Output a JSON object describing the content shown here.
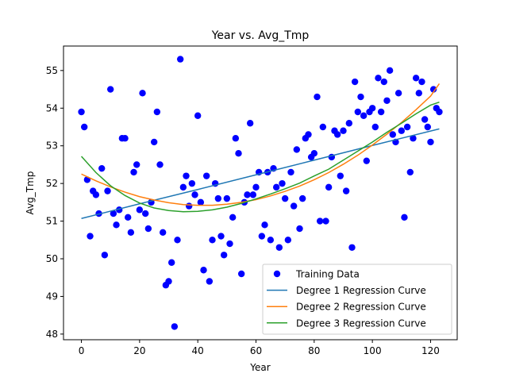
{
  "chart_data": {
    "type": "scatter",
    "title": "Year vs. Avg_Tmp",
    "xlabel": "Year",
    "ylabel": "Avg_Tmp",
    "xlim": [
      -6.15,
      129.15
    ],
    "ylim": [
      47.85,
      55.65
    ],
    "xticks": [
      0,
      20,
      40,
      60,
      80,
      100,
      120
    ],
    "yticks": [
      48,
      49,
      50,
      51,
      52,
      53,
      54,
      55
    ],
    "grid": false,
    "legend_position": "lower right",
    "colors": {
      "scatter": "#0000ff",
      "degree1": "#1f77b4",
      "degree2": "#ff7f0e",
      "degree3": "#2ca02c"
    },
    "scatter": {
      "name": "Training Data",
      "points": [
        [
          0,
          53.9
        ],
        [
          1,
          53.5
        ],
        [
          2,
          52.1
        ],
        [
          3,
          50.6
        ],
        [
          4,
          51.8
        ],
        [
          5,
          51.7
        ],
        [
          6,
          51.2
        ],
        [
          7,
          52.4
        ],
        [
          8,
          50.1
        ],
        [
          9,
          51.8
        ],
        [
          10,
          54.5
        ],
        [
          11,
          51.2
        ],
        [
          12,
          50.9
        ],
        [
          13,
          51.3
        ],
        [
          14,
          53.2
        ],
        [
          15,
          53.2
        ],
        [
          16,
          51.1
        ],
        [
          17,
          50.7
        ],
        [
          18,
          52.3
        ],
        [
          19,
          52.5
        ],
        [
          20,
          51.3
        ],
        [
          21,
          54.4
        ],
        [
          22,
          51.2
        ],
        [
          23,
          50.8
        ],
        [
          24,
          51.5
        ],
        [
          25,
          53.1
        ],
        [
          26,
          53.9
        ],
        [
          27,
          52.5
        ],
        [
          28,
          50.7
        ],
        [
          29,
          49.3
        ],
        [
          30,
          49.4
        ],
        [
          31,
          49.9
        ],
        [
          32,
          48.2
        ],
        [
          33,
          50.5
        ],
        [
          34,
          55.3
        ],
        [
          35,
          51.9
        ],
        [
          36,
          52.2
        ],
        [
          37,
          51.4
        ],
        [
          38,
          52.0
        ],
        [
          39,
          51.7
        ],
        [
          40,
          53.8
        ],
        [
          41,
          51.5
        ],
        [
          42,
          49.7
        ],
        [
          43,
          52.2
        ],
        [
          44,
          49.4
        ],
        [
          45,
          50.5
        ],
        [
          46,
          52.0
        ],
        [
          47,
          51.6
        ],
        [
          48,
          50.6
        ],
        [
          49,
          50.1
        ],
        [
          50,
          51.6
        ],
        [
          51,
          50.4
        ],
        [
          52,
          51.1
        ],
        [
          53,
          53.2
        ],
        [
          54,
          52.8
        ],
        [
          55,
          49.6
        ],
        [
          56,
          51.5
        ],
        [
          57,
          51.7
        ],
        [
          58,
          53.6
        ],
        [
          59,
          51.7
        ],
        [
          60,
          51.9
        ],
        [
          61,
          52.3
        ],
        [
          62,
          50.6
        ],
        [
          63,
          50.9
        ],
        [
          64,
          52.3
        ],
        [
          65,
          50.5
        ],
        [
          66,
          52.4
        ],
        [
          67,
          51.9
        ],
        [
          68,
          50.3
        ],
        [
          69,
          52.0
        ],
        [
          70,
          51.6
        ],
        [
          71,
          50.5
        ],
        [
          72,
          52.3
        ],
        [
          73,
          51.4
        ],
        [
          74,
          52.9
        ],
        [
          75,
          50.8
        ],
        [
          76,
          51.6
        ],
        [
          77,
          53.2
        ],
        [
          78,
          53.3
        ],
        [
          79,
          52.7
        ],
        [
          80,
          52.8
        ],
        [
          81,
          54.3
        ],
        [
          82,
          51.0
        ],
        [
          83,
          53.5
        ],
        [
          84,
          51.0
        ],
        [
          85,
          51.9
        ],
        [
          86,
          52.7
        ],
        [
          87,
          53.4
        ],
        [
          88,
          53.3
        ],
        [
          89,
          52.2
        ],
        [
          90,
          53.4
        ],
        [
          91,
          51.8
        ],
        [
          92,
          53.6
        ],
        [
          93,
          50.3
        ],
        [
          94,
          54.7
        ],
        [
          95,
          53.9
        ],
        [
          96,
          54.3
        ],
        [
          97,
          53.8
        ],
        [
          98,
          52.6
        ],
        [
          99,
          53.9
        ],
        [
          100,
          54.0
        ],
        [
          101,
          53.5
        ],
        [
          102,
          54.8
        ],
        [
          103,
          53.9
        ],
        [
          104,
          54.7
        ],
        [
          105,
          54.2
        ],
        [
          106,
          55.0
        ],
        [
          107,
          53.3
        ],
        [
          108,
          53.1
        ],
        [
          109,
          54.4
        ],
        [
          110,
          53.4
        ],
        [
          111,
          51.1
        ],
        [
          112,
          53.5
        ],
        [
          113,
          52.3
        ],
        [
          114,
          53.2
        ],
        [
          115,
          54.8
        ],
        [
          116,
          54.4
        ],
        [
          117,
          54.7
        ],
        [
          118,
          53.7
        ],
        [
          119,
          53.5
        ],
        [
          120,
          53.1
        ],
        [
          121,
          54.5
        ],
        [
          122,
          54.0
        ],
        [
          123,
          53.9
        ]
      ]
    },
    "curves": [
      {
        "name": "Degree 1 Regression Curve",
        "color": "#1f77b4",
        "x": [
          0,
          20,
          40,
          60,
          80,
          100,
          123
        ],
        "y": [
          51.07,
          51.46,
          51.84,
          52.23,
          52.62,
          53.01,
          53.45
        ]
      },
      {
        "name": "Degree 2 Regression Curve",
        "color": "#ff7f0e",
        "x": [
          0,
          5,
          10,
          15,
          20,
          25,
          30,
          35,
          40,
          45,
          50,
          55,
          60,
          65,
          70,
          75,
          80,
          85,
          90,
          95,
          100,
          105,
          110,
          115,
          120,
          123
        ],
        "y": [
          52.25,
          52.07,
          51.91,
          51.77,
          51.65,
          51.56,
          51.49,
          51.44,
          51.42,
          51.42,
          51.45,
          51.5,
          51.57,
          51.67,
          51.79,
          51.93,
          52.1,
          52.29,
          52.51,
          52.75,
          53.02,
          53.31,
          53.62,
          53.96,
          54.32,
          54.65
        ]
      },
      {
        "name": "Degree 3 Regression Curve",
        "color": "#2ca02c",
        "x": [
          0,
          5,
          10,
          15,
          20,
          25,
          30,
          35,
          40,
          45,
          50,
          55,
          60,
          65,
          70,
          75,
          80,
          85,
          90,
          95,
          100,
          105,
          110,
          115,
          120,
          123
        ],
        "y": [
          52.72,
          52.29,
          51.94,
          51.68,
          51.48,
          51.35,
          51.28,
          51.25,
          51.26,
          51.3,
          51.37,
          51.47,
          51.59,
          51.72,
          51.86,
          52.01,
          52.2,
          52.38,
          52.62,
          52.86,
          53.1,
          53.36,
          53.6,
          53.85,
          54.08,
          54.16
        ]
      }
    ]
  }
}
